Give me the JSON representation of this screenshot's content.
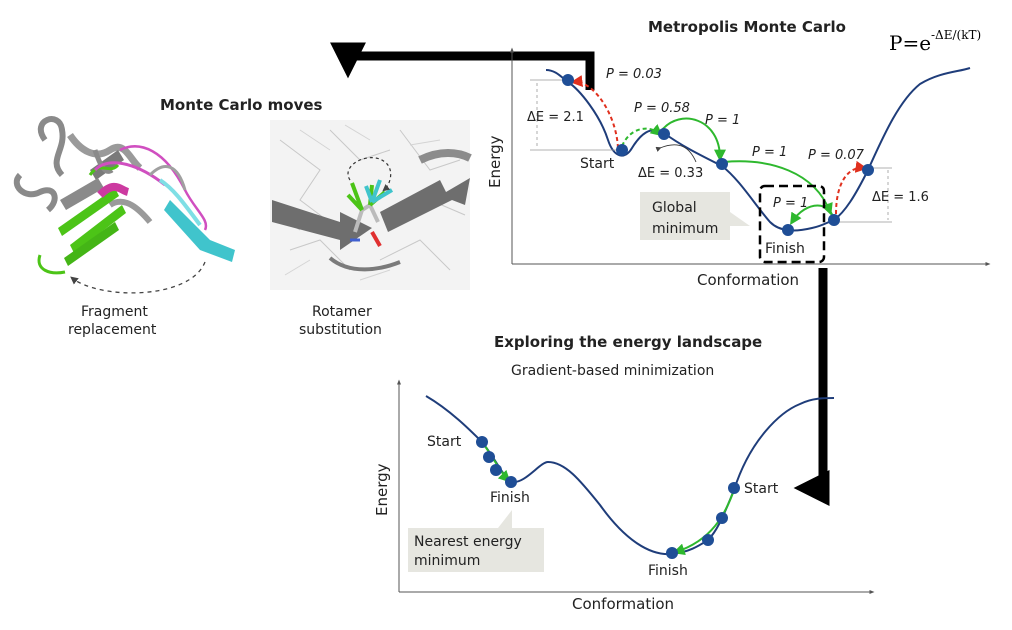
{
  "header": {
    "mc_title": "Metropolis Monte Carlo",
    "formula_base": "P=e",
    "formula_exp": "-ΔE/(kT)"
  },
  "moves": {
    "title": "Monte Carlo moves",
    "fragment_line1": "Fragment",
    "fragment_line2": "replacement",
    "rotamer_line1": "Rotamer",
    "rotamer_line2": "substitution"
  },
  "metropolis": {
    "ylabel": "Energy",
    "xlabel": "Conformation",
    "p_labels": [
      "P = 0.03",
      "P = 0.58",
      "P = 1",
      "P = 1",
      "P = 0.07",
      "P = 1"
    ],
    "de_labels": [
      "ΔE = 2.1",
      "ΔE = 0.33",
      "ΔE = 1.6"
    ],
    "start": "Start",
    "finish": "Finish",
    "global_line1": "Global",
    "global_line2": "minimum"
  },
  "explore": {
    "title": "Exploring the energy landscape",
    "subtitle": "Gradient-based minimization"
  },
  "gradient": {
    "ylabel": "Energy",
    "xlabel": "Conformation",
    "start_left": "Start",
    "finish_left": "Finish",
    "start_right": "Start",
    "finish_right": "Finish",
    "nearest_line1": "Nearest energy",
    "nearest_line2": "minimum"
  },
  "colors": {
    "curve": "#1f3d7a",
    "dot": "#1f4e96",
    "accept": "#2eb82e",
    "reject": "#e0301e",
    "cyan": "#40c4cc",
    "magenta": "#d04fc0",
    "green": "#4cc417"
  }
}
